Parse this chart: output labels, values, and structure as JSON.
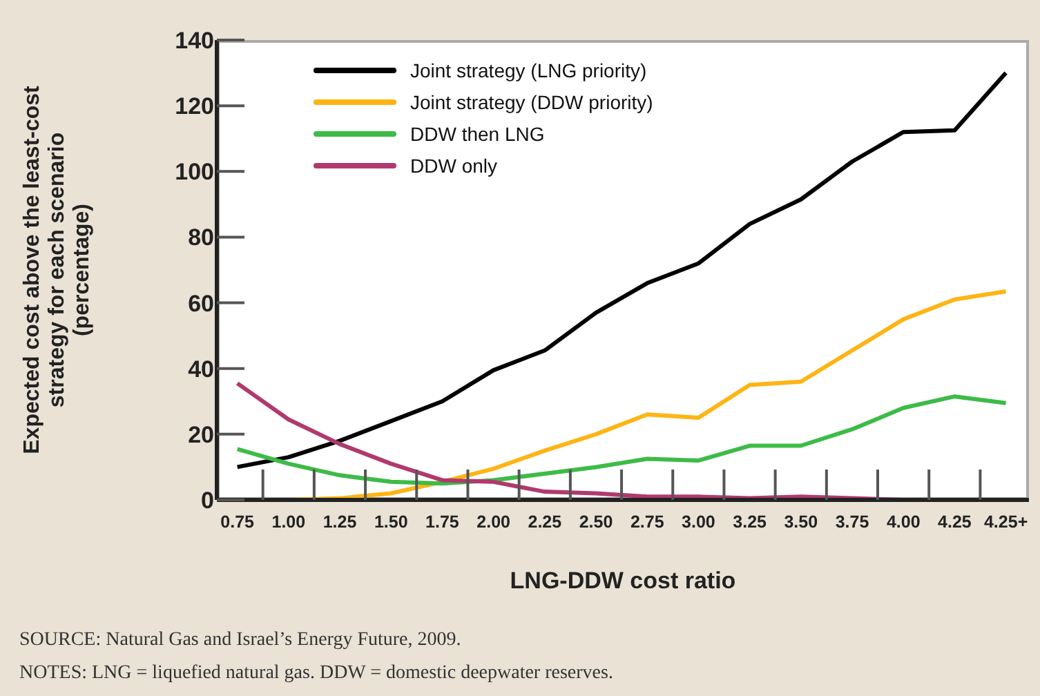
{
  "chart_data": {
    "type": "line",
    "xlabel": "LNG-DDW cost ratio",
    "ylabel": "Expected cost above the least-cost strategy for each scenario (percentage)",
    "categories": [
      "0.75",
      "1.00",
      "1.25",
      "1.50",
      "1.75",
      "2.00",
      "2.25",
      "2.50",
      "2.75",
      "3.00",
      "3.25",
      "3.50",
      "3.75",
      "4.00",
      "4.25",
      "4.25+"
    ],
    "series": [
      {
        "name": "Joint strategy (LNG priority)",
        "color": "#000000",
        "values": [
          10,
          13,
          18,
          24,
          30,
          39.5,
          45.5,
          57,
          66,
          72,
          84,
          91.5,
          103,
          112,
          112.5,
          130
        ]
      },
      {
        "name": "Joint strategy (DDW priority)",
        "color": "#fdb515",
        "values": [
          0,
          0,
          0.5,
          2,
          5.5,
          9.5,
          15,
          20,
          26,
          25,
          35,
          36,
          45.5,
          55,
          61,
          63.5
        ]
      },
      {
        "name": "DDW then LNG",
        "color": "#3dbb48",
        "values": [
          15.5,
          11,
          7.5,
          5.5,
          5,
          6,
          8,
          10,
          12.5,
          12,
          16.5,
          16.5,
          21.5,
          28,
          31.5,
          29.5
        ]
      },
      {
        "name": "DDW only",
        "color": "#b03a6e",
        "values": [
          35.5,
          24.5,
          17,
          11,
          6,
          5.5,
          2.5,
          2,
          1,
          1,
          0.5,
          1,
          0.5,
          0,
          0,
          0
        ]
      }
    ],
    "ylim": [
      0,
      140
    ],
    "yticks": [
      0,
      20,
      40,
      60,
      80,
      100,
      120,
      140
    ],
    "grid": false,
    "legend": "top left",
    "marker": "none",
    "line_style": "solid",
    "annotations": [
      "SOURCE: Natural Gas and Israel’s Energy Future, 2009.",
      "NOTES: LNG = liquefied natural gas. DDW = domestic deepwater reserves."
    ]
  }
}
